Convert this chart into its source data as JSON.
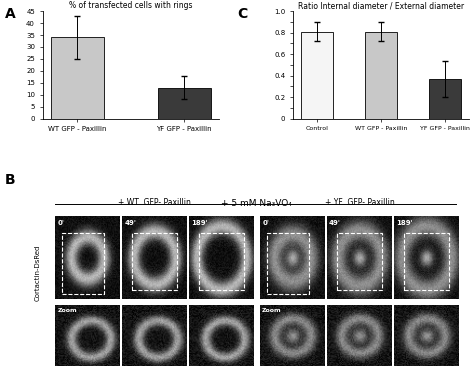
{
  "panel_A": {
    "title": "% of transfected cells with rings",
    "categories": [
      "WT GFP - Paxillin",
      "YF GFP - Paxillin"
    ],
    "values": [
      34,
      13
    ],
    "errors": [
      9,
      5
    ],
    "colors": [
      "#c8c8c8",
      "#3a3a3a"
    ],
    "ylim": [
      0,
      45
    ],
    "yticks": [
      0,
      5,
      10,
      15,
      20,
      25,
      30,
      35,
      40,
      45
    ]
  },
  "panel_C": {
    "title": "Ratio Internal diameter / External diameter",
    "categories": [
      "Control",
      "WT GFP - Paxillin",
      "YF GFP - Paxillin"
    ],
    "values": [
      0.81,
      0.81,
      0.37
    ],
    "errors": [
      0.09,
      0.09,
      0.17
    ],
    "colors": [
      "#f5f5f5",
      "#c8c8c8",
      "#3a3a3a"
    ],
    "ylim": [
      0,
      1
    ],
    "yticks": [
      0,
      0.1,
      0.2,
      0.3,
      0.4,
      0.5,
      0.6,
      0.7,
      0.8,
      0.9,
      1.0
    ]
  },
  "panel_B": {
    "label_left": "+ WT  GFP- Paxillin",
    "label_right": "+ YF  GFP- Paxillin",
    "top_label": "+ 5 mM Na₃VO₄",
    "time_labels": [
      "0'",
      "49'",
      "189'"
    ],
    "row_label": "Cortactin-DsRed",
    "zoom_label": "Zoom"
  },
  "figure_bg": "#ffffff"
}
